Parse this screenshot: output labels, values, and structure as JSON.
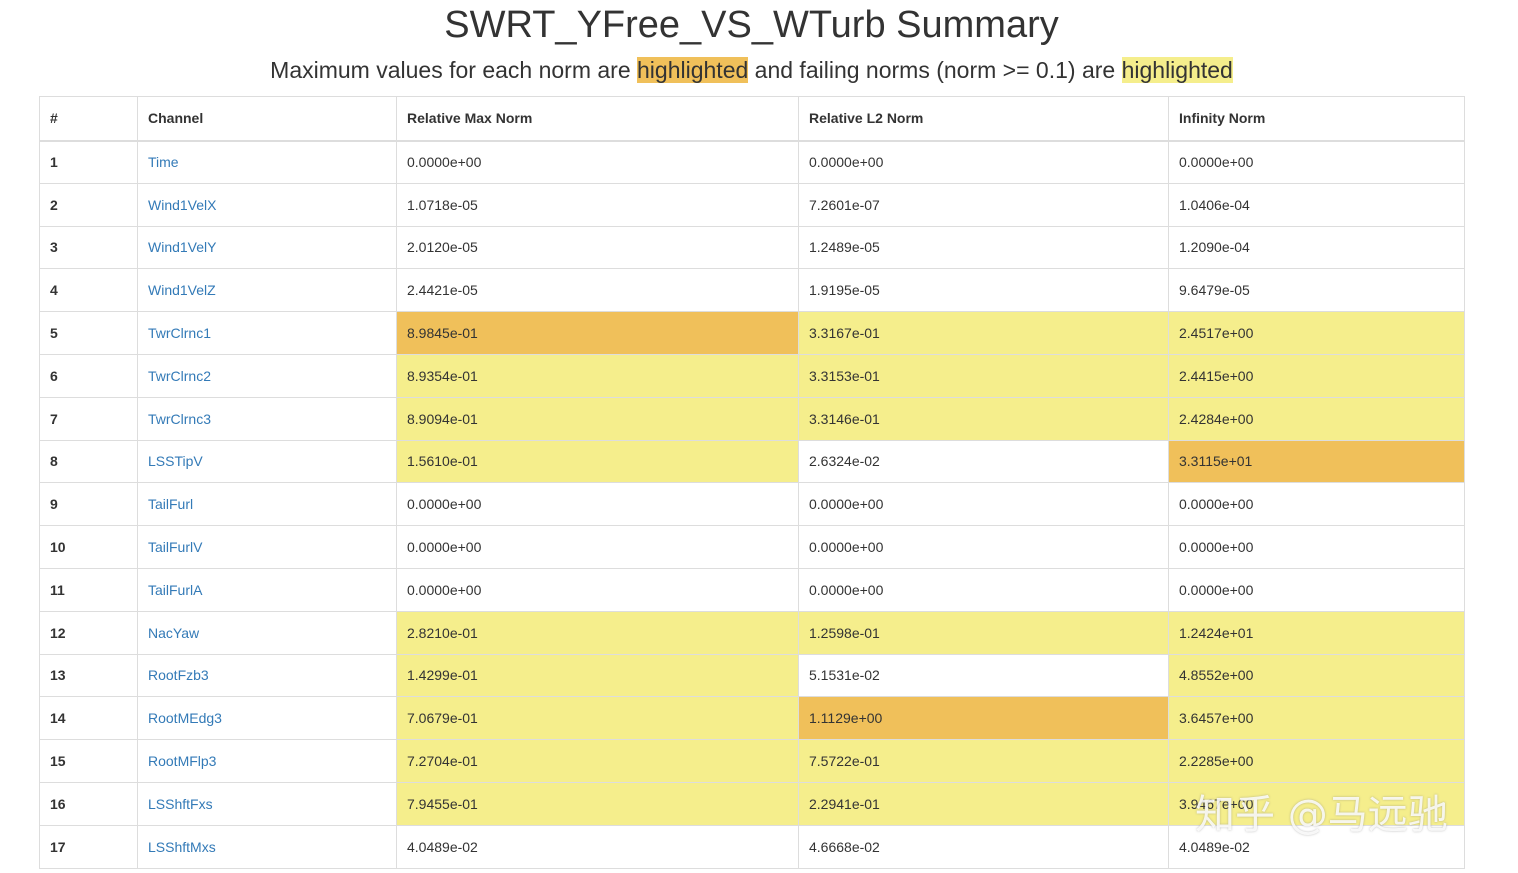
{
  "title": "SWRT_YFree_VS_WTurb Summary",
  "subtitle": {
    "part1": "Maximum values for each norm are ",
    "hl1": "highlighted",
    "part2": " and failing norms (norm >= 0.1) are ",
    "hl2": "highlighted"
  },
  "colors": {
    "max_highlight": "#f0c05a",
    "fail_highlight": "#f5ee8c",
    "link": "#337ab7"
  },
  "table": {
    "headers": [
      "#",
      "Channel",
      "Relative Max Norm",
      "Relative L2 Norm",
      "Infinity Norm"
    ],
    "rows": [
      {
        "num": "1",
        "channel": "Time",
        "max": "0.0000e+00",
        "l2": "0.0000e+00",
        "inf": "0.0000e+00",
        "hl": [
          "",
          "",
          ""
        ]
      },
      {
        "num": "2",
        "channel": "Wind1VelX",
        "max": "1.0718e-05",
        "l2": "7.2601e-07",
        "inf": "1.0406e-04",
        "hl": [
          "",
          "",
          ""
        ]
      },
      {
        "num": "3",
        "channel": "Wind1VelY",
        "max": "2.0120e-05",
        "l2": "1.2489e-05",
        "inf": "1.2090e-04",
        "hl": [
          "",
          "",
          ""
        ]
      },
      {
        "num": "4",
        "channel": "Wind1VelZ",
        "max": "2.4421e-05",
        "l2": "1.9195e-05",
        "inf": "9.6479e-05",
        "hl": [
          "",
          "",
          ""
        ]
      },
      {
        "num": "5",
        "channel": "TwrClrnc1",
        "max": "8.9845e-01",
        "l2": "3.3167e-01",
        "inf": "2.4517e+00",
        "hl": [
          "max",
          "fail",
          "fail"
        ]
      },
      {
        "num": "6",
        "channel": "TwrClrnc2",
        "max": "8.9354e-01",
        "l2": "3.3153e-01",
        "inf": "2.4415e+00",
        "hl": [
          "fail",
          "fail",
          "fail"
        ]
      },
      {
        "num": "7",
        "channel": "TwrClrnc3",
        "max": "8.9094e-01",
        "l2": "3.3146e-01",
        "inf": "2.4284e+00",
        "hl": [
          "fail",
          "fail",
          "fail"
        ]
      },
      {
        "num": "8",
        "channel": "LSSTipV",
        "max": "1.5610e-01",
        "l2": "2.6324e-02",
        "inf": "3.3115e+01",
        "hl": [
          "fail",
          "",
          "max"
        ]
      },
      {
        "num": "9",
        "channel": "TailFurl",
        "max": "0.0000e+00",
        "l2": "0.0000e+00",
        "inf": "0.0000e+00",
        "hl": [
          "",
          "",
          ""
        ]
      },
      {
        "num": "10",
        "channel": "TailFurlV",
        "max": "0.0000e+00",
        "l2": "0.0000e+00",
        "inf": "0.0000e+00",
        "hl": [
          "",
          "",
          ""
        ]
      },
      {
        "num": "11",
        "channel": "TailFurlA",
        "max": "0.0000e+00",
        "l2": "0.0000e+00",
        "inf": "0.0000e+00",
        "hl": [
          "",
          "",
          ""
        ]
      },
      {
        "num": "12",
        "channel": "NacYaw",
        "max": "2.8210e-01",
        "l2": "1.2598e-01",
        "inf": "1.2424e+01",
        "hl": [
          "fail",
          "fail",
          "fail"
        ]
      },
      {
        "num": "13",
        "channel": "RootFzb3",
        "max": "1.4299e-01",
        "l2": "5.1531e-02",
        "inf": "4.8552e+00",
        "hl": [
          "fail",
          "",
          "fail"
        ]
      },
      {
        "num": "14",
        "channel": "RootMEdg3",
        "max": "7.0679e-01",
        "l2": "1.1129e+00",
        "inf": "3.6457e+00",
        "hl": [
          "fail",
          "max",
          "fail"
        ]
      },
      {
        "num": "15",
        "channel": "RootMFlp3",
        "max": "7.2704e-01",
        "l2": "7.5722e-01",
        "inf": "2.2285e+00",
        "hl": [
          "fail",
          "fail",
          "fail"
        ]
      },
      {
        "num": "16",
        "channel": "LSShftFxs",
        "max": "7.9455e-01",
        "l2": "2.2941e-01",
        "inf": "3.9467e+00",
        "hl": [
          "fail",
          "fail",
          "fail"
        ]
      },
      {
        "num": "17",
        "channel": "LSShftMxs",
        "max": "4.0489e-02",
        "l2": "4.6668e-02",
        "inf": "4.0489e-02",
        "hl": [
          "",
          "",
          ""
        ]
      }
    ]
  },
  "watermark": "知乎 @马远驰"
}
